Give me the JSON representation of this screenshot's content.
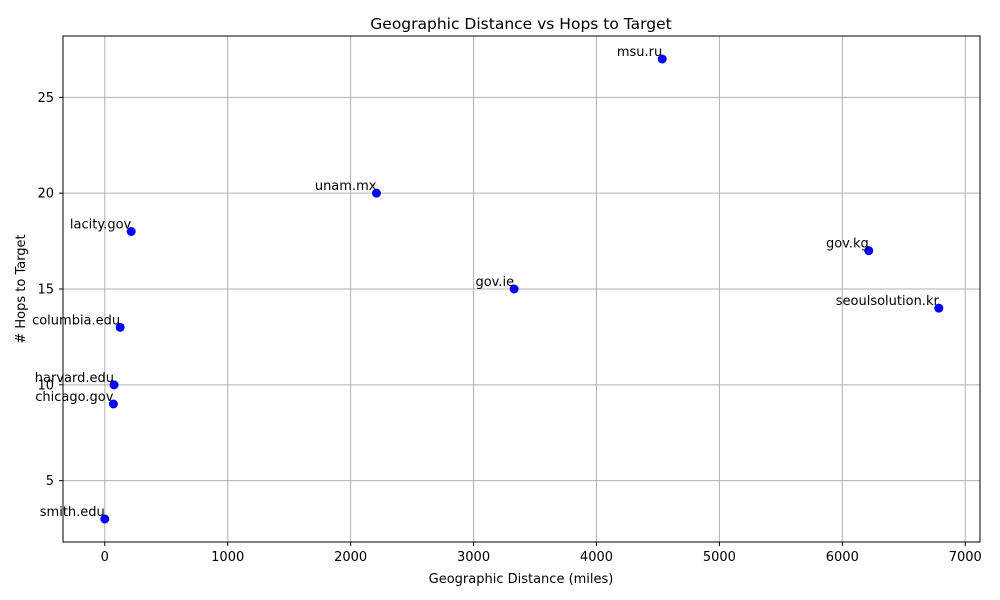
{
  "chart_data": {
    "type": "scatter",
    "title": "Geographic Distance vs Hops to Target",
    "xlabel": "Geographic Distance (miles)",
    "ylabel": "# Hops to Target",
    "xlim": [
      -340,
      7120
    ],
    "ylim": [
      1.8,
      28.2
    ],
    "xticks": [
      0,
      1000,
      2000,
      3000,
      4000,
      5000,
      6000,
      7000
    ],
    "yticks": [
      5,
      10,
      15,
      20,
      25
    ],
    "grid": true,
    "marker_color": "#0000ff",
    "points": [
      {
        "label": "smith.edu",
        "x": 0,
        "y": 3
      },
      {
        "label": "chicago.gov",
        "x": 70,
        "y": 9
      },
      {
        "label": "harvard.edu",
        "x": 75,
        "y": 10
      },
      {
        "label": "columbia.edu",
        "x": 125,
        "y": 13
      },
      {
        "label": "lacity.gov",
        "x": 215,
        "y": 18
      },
      {
        "label": "unam.mx",
        "x": 2210,
        "y": 20
      },
      {
        "label": "gov.ie",
        "x": 3330,
        "y": 15
      },
      {
        "label": "msu.ru",
        "x": 4535,
        "y": 27
      },
      {
        "label": "gov.kg",
        "x": 6215,
        "y": 17
      },
      {
        "label": "seoulsolution.kr",
        "x": 6785,
        "y": 14
      }
    ]
  }
}
